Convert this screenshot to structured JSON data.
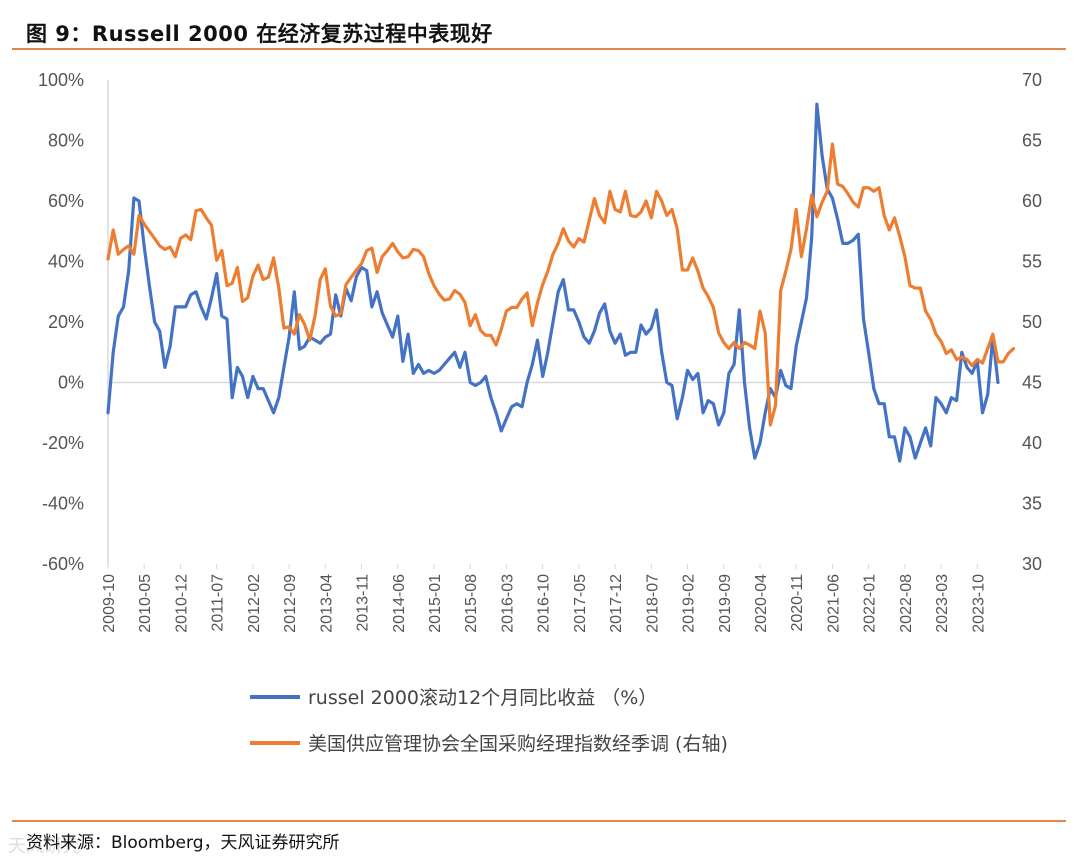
{
  "header": {
    "title": "图 9：Russell 2000 在经济复苏过程中表现好"
  },
  "footer": {
    "source": "资料来源：Bloomberg，天风证券研究所",
    "watermark": "天风研究"
  },
  "colors": {
    "series1": "#4472c4",
    "series2": "#ed7d31",
    "rule": "#e0884a",
    "axis": "#d9d9d9"
  },
  "chart_data": {
    "type": "line",
    "title": "图 9：Russell 2000 在经济复苏过程中表现好",
    "x_tick_labels": [
      "2009-10",
      "2010-05",
      "2010-12",
      "2011-07",
      "2012-02",
      "2012-09",
      "2013-04",
      "2013-11",
      "2014-06",
      "2015-01",
      "2015-08",
      "2016-03",
      "2016-10",
      "2017-05",
      "2017-12",
      "2018-07",
      "2019-02",
      "2019-09",
      "2020-04",
      "2020-11",
      "2021-06",
      "2022-01",
      "2022-08",
      "2023-03",
      "2023-10"
    ],
    "x_start": "2009-10",
    "x_step": "monthly",
    "y_left": {
      "ticks": [
        "100%",
        "80%",
        "60%",
        "40%",
        "20%",
        "0%",
        "-20%",
        "-40%",
        "-60%"
      ],
      "range": [
        -60,
        100
      ]
    },
    "y_right": {
      "ticks": [
        "70",
        "65",
        "60",
        "55",
        "50",
        "45",
        "40",
        "35",
        "30"
      ],
      "range": [
        30,
        70
      ]
    },
    "legend": [
      "russel 2000滚动12个月同比收益 （%）",
      "美国供应管理协会全国采购经理指数经季调 (右轴)"
    ],
    "series": [
      {
        "name": "russel 2000滚动12个月同比收益 （%）",
        "axis": "left",
        "values": [
          -10,
          10,
          22,
          25,
          37,
          61,
          60,
          45,
          32,
          20,
          17,
          5,
          12,
          25,
          25,
          25,
          29,
          30,
          25,
          21,
          28,
          36,
          22,
          21,
          -5,
          5,
          2,
          -5,
          2,
          -2,
          -2,
          -6,
          -10,
          -5,
          5,
          15,
          30,
          11,
          12,
          15,
          14,
          13,
          15,
          16,
          29,
          22,
          31,
          27,
          35,
          38,
          37,
          25,
          30,
          23,
          19,
          15,
          22,
          7,
          16,
          3,
          6,
          3,
          4,
          3,
          4,
          6,
          8,
          10,
          5,
          10,
          0,
          -1,
          0,
          2,
          -5,
          -10,
          -16,
          -12,
          -8,
          -7,
          -8,
          0,
          6,
          14,
          2,
          10,
          20,
          30,
          34,
          24,
          24,
          20,
          15,
          13,
          17,
          23,
          26,
          17,
          13,
          16,
          9,
          10,
          10,
          19,
          16,
          18,
          24,
          10,
          0,
          -1,
          -12,
          -5,
          4,
          1,
          3,
          -10,
          -6,
          -7,
          -14,
          -10,
          3,
          6,
          24,
          0,
          -15,
          -25,
          -20,
          -10,
          -2,
          -5,
          4,
          -1,
          -2,
          12,
          20,
          28,
          48,
          92,
          75,
          64,
          61,
          54,
          46,
          46,
          47,
          49,
          21,
          10,
          -2,
          -7,
          -7,
          -18,
          -18,
          -26,
          -15,
          -18,
          -25,
          -20,
          -15,
          -21,
          -5,
          -7,
          -10,
          -5,
          -6,
          10,
          5,
          3,
          7,
          -10,
          -4,
          15,
          0
        ]
      },
      {
        "name": "美国供应管理协会全国采购经理指数经季调 (右轴)",
        "axis": "right",
        "values": [
          55.2,
          57.6,
          55.6,
          56.0,
          56.3,
          55.6,
          58.8,
          58.1,
          57.5,
          56.9,
          56.3,
          56.0,
          56.2,
          55.4,
          56.9,
          57.2,
          56.8,
          59.2,
          59.3,
          58.6,
          58.0,
          55.1,
          55.9,
          53.0,
          53.2,
          54.5,
          51.7,
          52.0,
          53.8,
          54.7,
          53.5,
          53.7,
          55.3,
          52.8,
          49.5,
          49.6,
          49.0,
          50.6,
          49.8,
          48.5,
          50.5,
          53.5,
          54.4,
          51.3,
          50.5,
          50.7,
          53.1,
          53.7,
          54.3,
          54.8,
          55.9,
          56.1,
          54.1,
          55.4,
          55.9,
          56.5,
          55.8,
          55.3,
          55.4,
          56.0,
          55.9,
          55.4,
          54.0,
          53.0,
          52.3,
          51.8,
          51.9,
          52.6,
          52.3,
          51.6,
          49.7,
          50.6,
          49.3,
          48.9,
          48.9,
          48.1,
          49.4,
          50.9,
          51.2,
          51.2,
          51.9,
          52.4,
          49.7,
          51.6,
          53.1,
          54.2,
          55.6,
          56.5,
          57.7,
          56.7,
          56.2,
          56.9,
          56.6,
          58.4,
          60.2,
          58.8,
          58.2,
          60.8,
          59.3,
          59.1,
          60.8,
          58.8,
          58.7,
          59.1,
          60.0,
          58.6,
          60.8,
          60.0,
          58.8,
          59.3,
          57.7,
          54.3,
          54.3,
          55.3,
          54.2,
          52.8,
          52.1,
          51.2,
          49.1,
          48.3,
          47.8,
          48.3,
          47.8,
          48.3,
          48.1,
          47.8,
          50.9,
          49.1,
          41.5,
          43.1,
          52.6,
          54.2,
          56.0,
          59.3,
          55.4,
          57.7,
          60.5,
          58.7,
          59.9,
          60.8,
          64.7,
          61.4,
          61.2,
          60.6,
          59.9,
          59.5,
          61.1,
          61.1,
          60.8,
          61.1,
          58.8,
          57.6,
          58.6,
          57.1,
          55.4,
          53.0,
          52.8,
          52.8,
          50.9,
          50.2,
          49.0,
          48.4,
          47.4,
          47.7,
          46.9,
          47.1,
          46.9,
          46.4,
          46.9,
          46.6,
          47.8,
          49.0,
          46.7,
          46.7,
          47.4,
          47.8
        ]
      }
    ]
  }
}
